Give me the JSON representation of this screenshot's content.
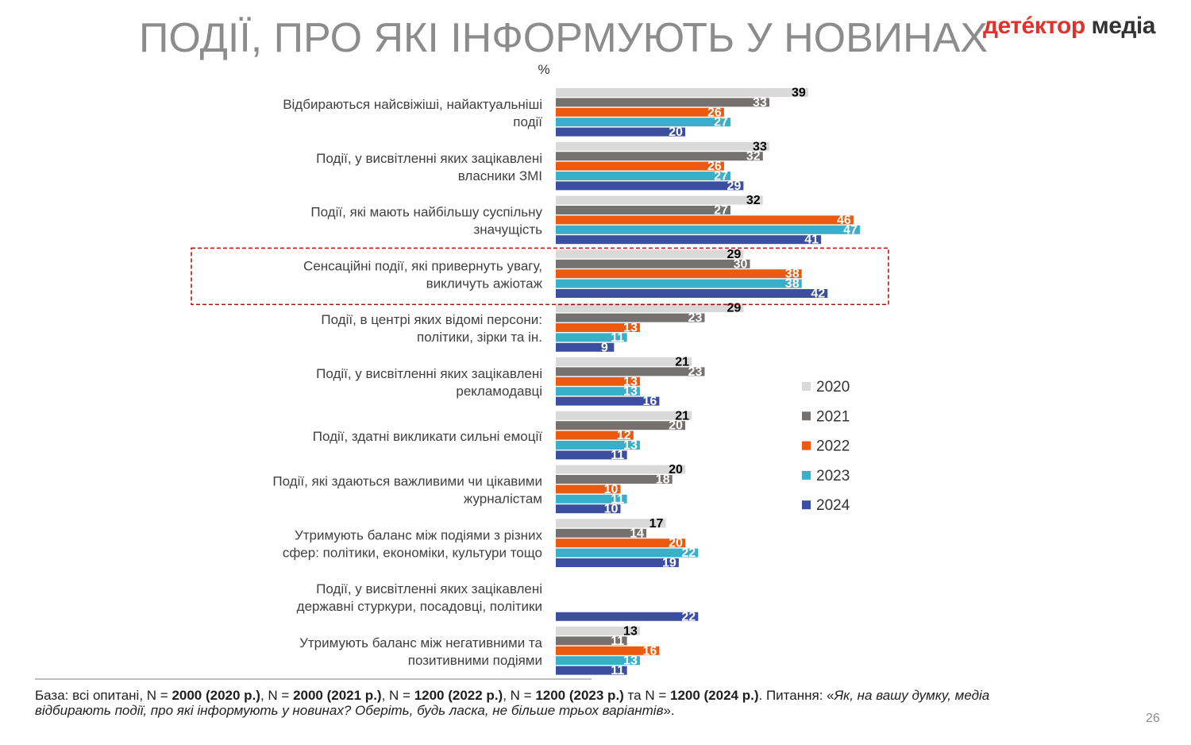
{
  "title": "ПОДІЇ, ПРО ЯКІ ІНФОРМУЮТЬ У НОВИНАХ",
  "brand": {
    "part1": "детéктор",
    "part2": " медіа"
  },
  "page_number": "26",
  "footnote": {
    "lead": "База: всі опитані, N = ",
    "n2020": "2000 (2020 р.)",
    "sep1": ", N = ",
    "n2021": "2000 (2021 р.)",
    "sep2": ", N = ",
    "n2022": "1200 (2022 р.)",
    "sep3": ", N = ",
    "n2023": "1200 (2023 р.)",
    "sep4": " та N = ",
    "n2024": "1200 (2024 р.)",
    "tail": ". Питання: «",
    "question": "Як, на вашу думку, медіа відбирають події, про які інформують у новинах? Оберіть, будь ласка, не більше трьох варіантів",
    "close": "»."
  },
  "colors": {
    "2020": "#d9d9d9",
    "2021": "#767171",
    "2022": "#ec5a0f",
    "2023": "#3ab0c8",
    "2024": "#3c4ea0",
    "highlight": "#c00000"
  },
  "chart_data": {
    "type": "bar",
    "orientation": "horizontal",
    "unit_label": "%",
    "highlighted_category_index": 3,
    "legend_position": "right",
    "categories": [
      [
        "Відбираються найсвіжіші, найактуальніші",
        "події"
      ],
      [
        "Події, у висвітленні яких зацікавлені",
        "власники ЗМІ"
      ],
      [
        "Події, які мають найбільшу суспільну",
        "значущість"
      ],
      [
        "Сенсаційні події, які привернуть увагу,",
        "викличуть ажіотаж"
      ],
      [
        "Події, в центрі яких відомі персони:",
        "політики, зірки та ін."
      ],
      [
        "Події, у висвітленні яких зацікавлені",
        "рекламодавці"
      ],
      [
        "Події, здатні викликати сильні емоції"
      ],
      [
        "Події, які здаються важливими чи цікавими",
        "журналістам"
      ],
      [
        "Утримують баланс між подіями з різних",
        "сфер: політики, економіки, культури тощо"
      ],
      [
        "Події, у висвітленні яких зацікавлені",
        "державні стуркури, посадовці, політики"
      ],
      [
        "Утримують баланс між негативними та",
        "позитивними подіями"
      ]
    ],
    "series": [
      {
        "name": "2020",
        "values": [
          39,
          33,
          32,
          29,
          29,
          21,
          21,
          20,
          17,
          null,
          13
        ]
      },
      {
        "name": "2021",
        "values": [
          33,
          32,
          27,
          30,
          23,
          23,
          20,
          18,
          14,
          null,
          11
        ]
      },
      {
        "name": "2022",
        "values": [
          26,
          26,
          46,
          38,
          13,
          13,
          12,
          10,
          20,
          null,
          16
        ]
      },
      {
        "name": "2023",
        "values": [
          27,
          27,
          47,
          38,
          11,
          13,
          13,
          11,
          22,
          null,
          13
        ]
      },
      {
        "name": "2024",
        "values": [
          20,
          29,
          41,
          42,
          9,
          16,
          11,
          10,
          19,
          22,
          11
        ]
      }
    ]
  }
}
